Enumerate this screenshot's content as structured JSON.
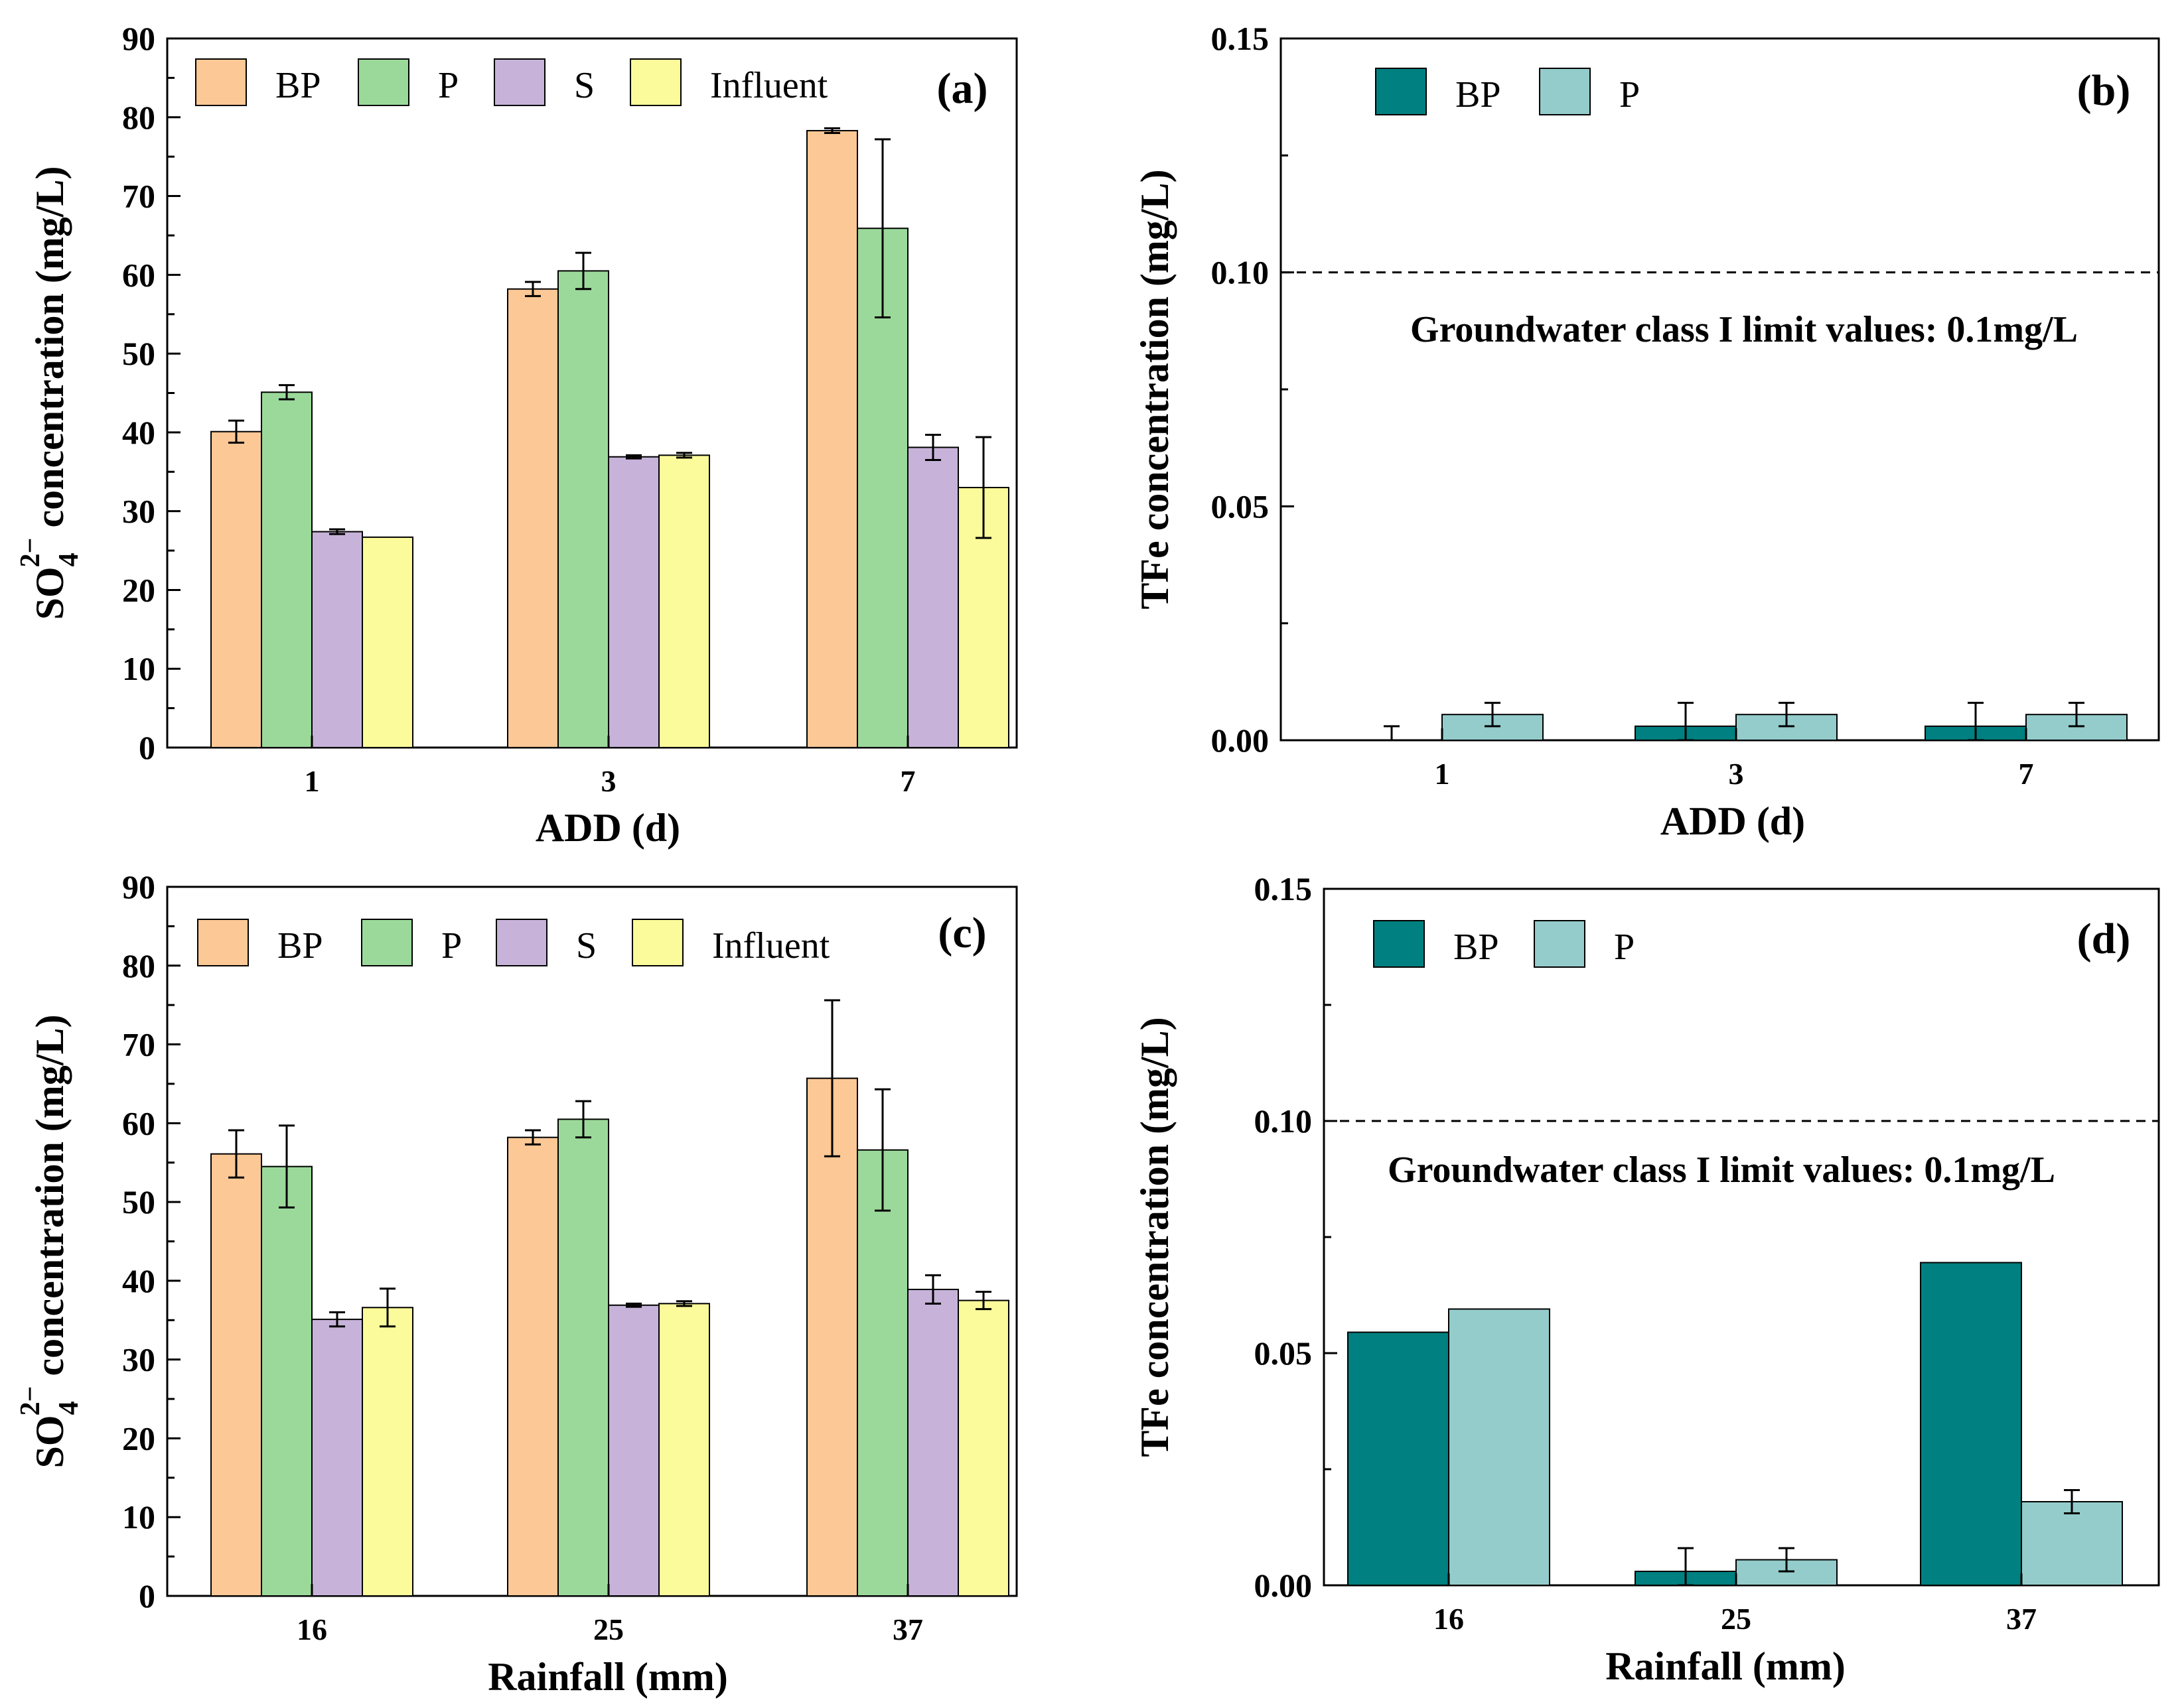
{
  "chart_data": [
    {
      "id": "a",
      "type": "bar",
      "panel_label": "(a)",
      "xlabel": "ADD (d)",
      "ylabel_main": "SO",
      "ylabel_sub": "4",
      "ylabel_sup": "2−",
      "ylabel_rest": " concentration (mg/L)",
      "ylim": [
        0,
        90
      ],
      "yticks": [
        "0",
        "10",
        "20",
        "30",
        "40",
        "50",
        "60",
        "70",
        "80",
        "90"
      ],
      "categories": [
        "1",
        "3",
        "7"
      ],
      "legend": [
        "BP",
        "P",
        "S",
        "Influent"
      ],
      "series": [
        {
          "name": "BP",
          "color": "#fbc896",
          "values": [
            40.1,
            58.2,
            78.3
          ],
          "errors": [
            1.4,
            0.9,
            0.3
          ]
        },
        {
          "name": "P",
          "color": "#9bd99b",
          "values": [
            45.1,
            60.5,
            65.9
          ],
          "errors": [
            0.9,
            2.3,
            11.3
          ]
        },
        {
          "name": "S",
          "color": "#c7b3d9",
          "values": [
            27.4,
            36.9,
            38.1
          ],
          "errors": [
            0.3,
            0.2,
            1.6
          ]
        },
        {
          "name": "Influent",
          "color": "#fbfb9b",
          "values": [
            26.7,
            37.1,
            33.0
          ],
          "errors": [
            0,
            0.3,
            6.4
          ]
        }
      ]
    },
    {
      "id": "b",
      "type": "bar",
      "panel_label": "(b)",
      "xlabel": "ADD (d)",
      "ylabel": "TFe concentration (mg/L)",
      "ylim": [
        0,
        0.15
      ],
      "yticks": [
        "0.00",
        "0.05",
        "0.10",
        "0.15"
      ],
      "categories": [
        "1",
        "3",
        "7"
      ],
      "legend": [
        "BP",
        "P"
      ],
      "series": [
        {
          "name": "BP",
          "color": "#008080",
          "values": [
            0.0,
            0.003,
            0.003
          ],
          "errors": [
            0.003,
            0.005,
            0.005
          ]
        },
        {
          "name": "P",
          "color": "#94cccc",
          "values": [
            0.0055,
            0.0055,
            0.0055
          ],
          "errors": [
            0.0025,
            0.0025,
            0.0025
          ]
        }
      ],
      "reference_line": 0.1,
      "annotation": "Groundwater class I limit values: 0.1mg/L"
    },
    {
      "id": "c",
      "type": "bar",
      "panel_label": "(c)",
      "xlabel": "Rainfall (mm)",
      "ylabel_main": "SO",
      "ylabel_sub": "4",
      "ylabel_sup": "2−",
      "ylabel_rest": " concentration (mg/L)",
      "ylim": [
        0,
        90
      ],
      "yticks": [
        "0",
        "10",
        "20",
        "30",
        "40",
        "50",
        "60",
        "70",
        "80",
        "90"
      ],
      "categories": [
        "16",
        "25",
        "37"
      ],
      "legend": [
        "BP",
        "P",
        "S",
        "Influent"
      ],
      "series": [
        {
          "name": "BP",
          "color": "#fbc896",
          "values": [
            56.1,
            58.2,
            65.7
          ],
          "errors": [
            3.0,
            0.9,
            9.9
          ]
        },
        {
          "name": "P",
          "color": "#9bd99b",
          "values": [
            54.5,
            60.5,
            56.6
          ],
          "errors": [
            5.2,
            2.3,
            7.7
          ]
        },
        {
          "name": "S",
          "color": "#c7b3d9",
          "values": [
            35.1,
            36.9,
            38.9
          ],
          "errors": [
            0.9,
            0.2,
            1.8
          ]
        },
        {
          "name": "Influent",
          "color": "#fbfb9b",
          "values": [
            36.6,
            37.1,
            37.5
          ],
          "errors": [
            2.4,
            0.3,
            1.1
          ]
        }
      ]
    },
    {
      "id": "d",
      "type": "bar",
      "panel_label": "(d)",
      "xlabel": "Rainfall (mm)",
      "ylabel": "TFe concentration (mg/L)",
      "ylim": [
        0,
        0.15
      ],
      "yticks": [
        "0.00",
        "0.05",
        "0.10",
        "0.15"
      ],
      "categories": [
        "16",
        "25",
        "37"
      ],
      "legend": [
        "BP",
        "P"
      ],
      "series": [
        {
          "name": "BP",
          "color": "#008080",
          "values": [
            0.0545,
            0.003,
            0.0695
          ],
          "errors": [
            0,
            0.005,
            0
          ]
        },
        {
          "name": "P",
          "color": "#94cccc",
          "values": [
            0.0595,
            0.0055,
            0.018
          ],
          "errors": [
            0,
            0.0025,
            0.0025
          ]
        }
      ],
      "reference_line": 0.1,
      "annotation": "Groundwater class I limit values: 0.1mg/L"
    }
  ]
}
